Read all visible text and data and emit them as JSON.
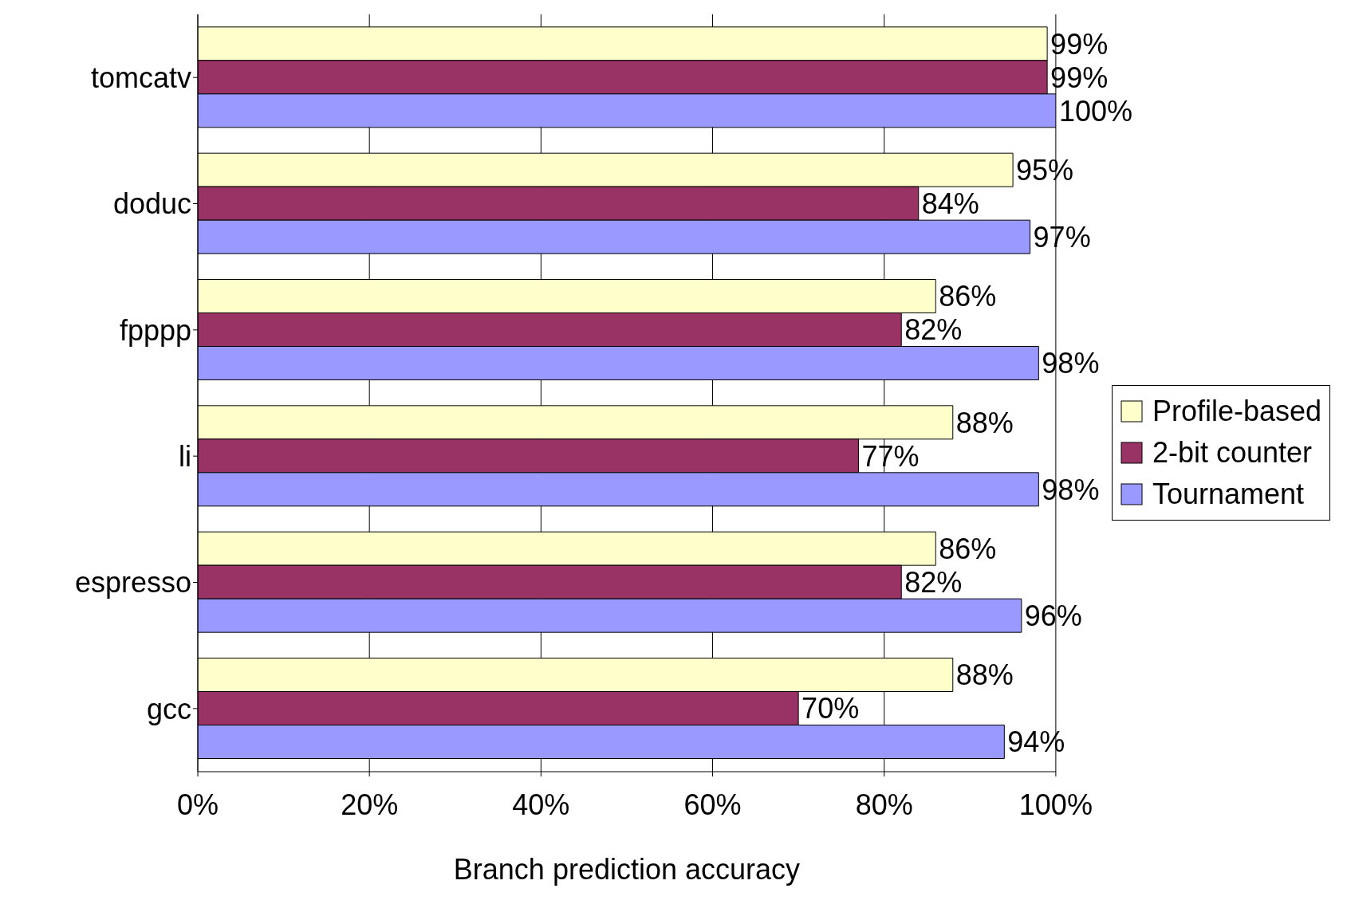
{
  "chart_data": {
    "type": "bar",
    "orientation": "horizontal",
    "xlabel": "Branch prediction accuracy",
    "categories": [
      "tomcatv",
      "doduc",
      "fpppp",
      "li",
      "espresso",
      "gcc"
    ],
    "series": [
      {
        "name": "Profile-based",
        "color": "#ffffcc",
        "values": [
          99,
          95,
          86,
          88,
          86,
          88
        ],
        "value_labels": [
          "99%",
          "95%",
          "86%",
          "88%",
          "86%",
          "88%"
        ]
      },
      {
        "name": "2-bit counter",
        "color": "#993366",
        "values": [
          99,
          84,
          82,
          77,
          82,
          70
        ],
        "value_labels": [
          "99%",
          "84%",
          "82%",
          "77%",
          "82%",
          "70%"
        ]
      },
      {
        "name": "Tournament",
        "color": "#9999ff",
        "values": [
          100,
          97,
          98,
          98,
          96,
          94
        ],
        "value_labels": [
          "100%",
          "97%",
          "98%",
          "98%",
          "96%",
          "94%"
        ]
      }
    ],
    "xlim": [
      0,
      100
    ],
    "xticks": [
      {
        "value": 0,
        "label": "0%"
      },
      {
        "value": 20,
        "label": "20%"
      },
      {
        "value": 40,
        "label": "40%"
      },
      {
        "value": 60,
        "label": "60%"
      },
      {
        "value": 80,
        "label": "80%"
      },
      {
        "value": 100,
        "label": "100%"
      }
    ],
    "grid": "x",
    "legend": "right"
  }
}
